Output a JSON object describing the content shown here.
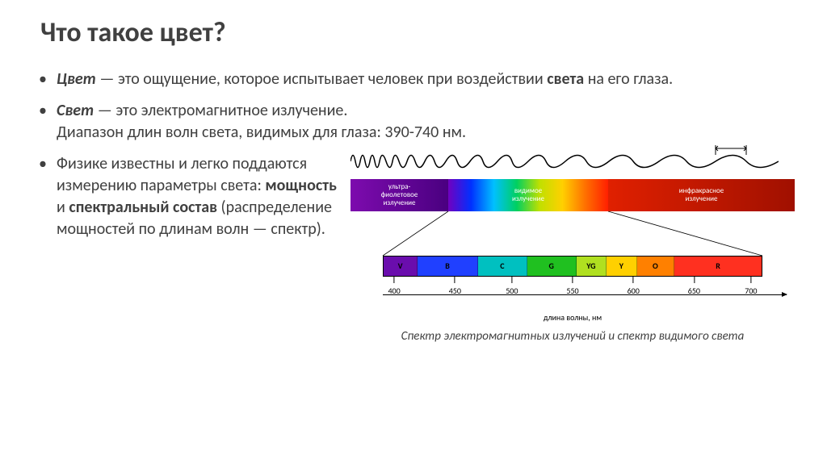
{
  "title": "Что такое цвет?",
  "bullet1": {
    "term": "Цвет",
    "dash": "—",
    "text1": "это ощущение, которое испытывает человек при воздействии",
    "bold2": "света",
    "text2": "на его глаза."
  },
  "bullet2": {
    "term": "Свет",
    "dash": "—",
    "text1": "это электромагнитное излучение.",
    "text2": "Диапазон длин волн света, видимых для глаза: 390-740 нм."
  },
  "bullet3": {
    "text1": "Физике известны и легко поддаются измерению параметры света:",
    "bold1": "мощность",
    "and": "и",
    "bold2": "спектральный состав",
    "text2": "(распределение мощностей по длинам волн — спектр)."
  },
  "diagram": {
    "lambda": "λ",
    "uv": {
      "l1": "ультра-",
      "l2": "фиолетовое",
      "l3": "излучение"
    },
    "visible": {
      "l1": "видимое",
      "l2": "излучение"
    },
    "ir": {
      "l1": "инфракрасное",
      "l2": "излучение"
    },
    "segments": [
      {
        "label": "V",
        "width": 9,
        "color": "#6a0dad"
      },
      {
        "label": "B",
        "width": 16,
        "color": "#2040ff"
      },
      {
        "label": "C",
        "width": 13,
        "color": "#00c0c0"
      },
      {
        "label": "G",
        "width": 13,
        "color": "#20c020"
      },
      {
        "label": "YG",
        "width": 8,
        "color": "#b0e020"
      },
      {
        "label": "Y",
        "width": 8,
        "color": "#ffd000"
      },
      {
        "label": "O",
        "width": 10,
        "color": "#ff8000"
      },
      {
        "label": "R",
        "width": 23,
        "color": "#ff3020"
      }
    ],
    "ticks": [
      {
        "pos": 3,
        "label": "400"
      },
      {
        "pos": 19,
        "label": "450"
      },
      {
        "pos": 34,
        "label": "500"
      },
      {
        "pos": 50,
        "label": "550"
      },
      {
        "pos": 66,
        "label": "600"
      },
      {
        "pos": 82,
        "label": "650"
      },
      {
        "pos": 97,
        "label": "700"
      }
    ],
    "axis_label": "длина волны, нм",
    "caption": "Спектр электромагнитных излучений и спектр видимого света"
  }
}
